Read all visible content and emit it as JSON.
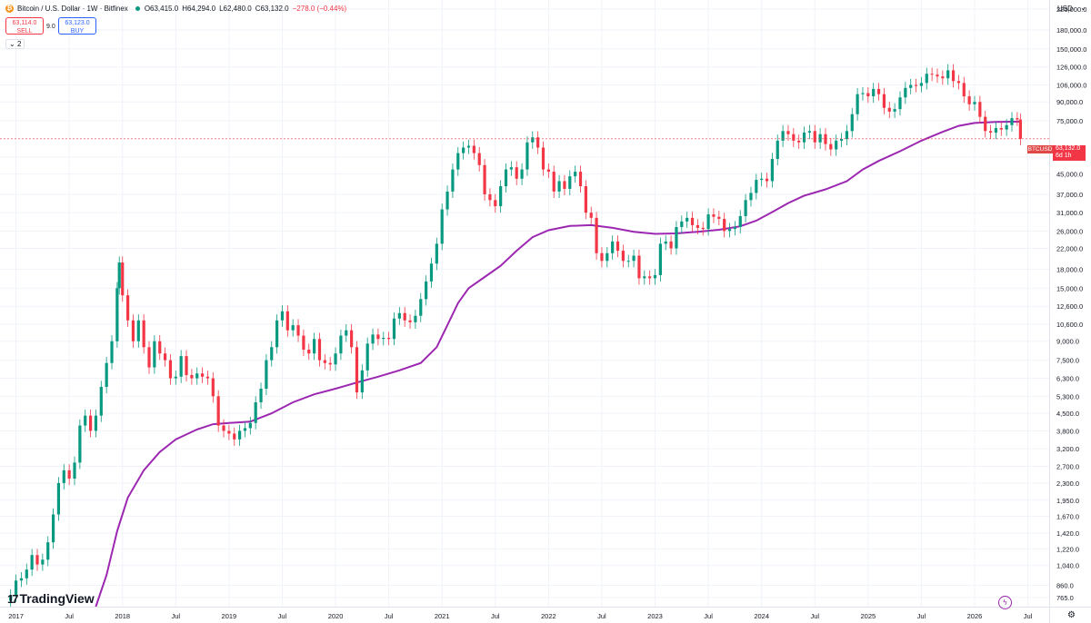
{
  "header": {
    "symbol_title": "Bitcoin / U.S. Dollar · 1W · Bitfinex",
    "open": "O63,415.0",
    "high": "H64,294.0",
    "low": "L62,480.0",
    "close": "C63,132.0",
    "change": "−278.0 (−0.44%)",
    "logo_glyph": "₿"
  },
  "trade": {
    "sell_price": "63,114.0",
    "sell_label": "SELL",
    "spread": "9.0",
    "buy_price": "63,123.0",
    "buy_label": "BUY"
  },
  "indicator_toggle": "2",
  "price_axis": {
    "currency": "USD",
    "caret": "⌄",
    "labels": [
      "220,000.0",
      "180,000.0",
      "150,000.0",
      "126,000.0",
      "106,000.0",
      "90,000.0",
      "75,000.0",
      "53,000.0",
      "45,000.0",
      "37,000.0",
      "31,000.0",
      "26,000.0",
      "22,000.0",
      "18,000.0",
      "15,000.0",
      "12,600.0",
      "10,600.0",
      "9,000.0",
      "7,500.0",
      "6,300.0",
      "5,300.0",
      "4,500.0",
      "3,800.0",
      "3,200.0",
      "2,700.0",
      "2,300.0",
      "1,950.0",
      "1,670.0",
      "1,420.0",
      "1,220.0",
      "1,040.0",
      "860.0",
      "765.0"
    ]
  },
  "time_axis": {
    "labels": [
      "2017",
      "Jul",
      "2018",
      "Jul",
      "2019",
      "Jul",
      "2020",
      "Jul",
      "2021",
      "Jul",
      "2022",
      "Jul",
      "2023",
      "Jul",
      "2024",
      "Jul",
      "2025",
      "Jul",
      "2026",
      "Jul"
    ]
  },
  "last_price_tag": {
    "symbol": "BTCUSD",
    "price": "63,132.0",
    "countdown": "6d 1h"
  },
  "branding": {
    "name": "TradingView",
    "mark": "17"
  },
  "icons": {
    "settings": "gear-icon",
    "alert": "spark-icon"
  },
  "colors": {
    "up": "#089981",
    "down": "#f23645",
    "ma": "#9c27b0",
    "grid": "#f0f3fa",
    "last_line": "#f23645"
  },
  "chart_data": {
    "type": "candlestick",
    "timeframe": "1W",
    "exchange": "Bitfinex",
    "y_scale": "log",
    "ylim": [
      700,
      240000
    ],
    "xlim": [
      2016.85,
      2026.7
    ],
    "grid": true,
    "last_close": 63132,
    "series": [
      {
        "name": "BTCUSD",
        "kind": "close_path",
        "points": [
          [
            2016.88,
            740
          ],
          [
            2016.95,
            780
          ],
          [
            2017.0,
            900
          ],
          [
            2017.05,
            920
          ],
          [
            2017.1,
            1000
          ],
          [
            2017.15,
            1150
          ],
          [
            2017.2,
            1050
          ],
          [
            2017.25,
            1100
          ],
          [
            2017.3,
            1300
          ],
          [
            2017.35,
            1700
          ],
          [
            2017.4,
            2300
          ],
          [
            2017.45,
            2600
          ],
          [
            2017.5,
            2400
          ],
          [
            2017.55,
            2800
          ],
          [
            2017.6,
            4000
          ],
          [
            2017.65,
            4400
          ],
          [
            2017.7,
            3800
          ],
          [
            2017.75,
            4400
          ],
          [
            2017.8,
            5800
          ],
          [
            2017.85,
            7300
          ],
          [
            2017.9,
            9000
          ],
          [
            2017.95,
            15000
          ],
          [
            2017.97,
            19200
          ],
          [
            2018.0,
            14000
          ],
          [
            2018.05,
            11000
          ],
          [
            2018.1,
            9000
          ],
          [
            2018.15,
            11000
          ],
          [
            2018.2,
            8500
          ],
          [
            2018.25,
            7000
          ],
          [
            2018.3,
            9000
          ],
          [
            2018.35,
            8000
          ],
          [
            2018.4,
            7500
          ],
          [
            2018.45,
            6300
          ],
          [
            2018.5,
            6400
          ],
          [
            2018.55,
            7800
          ],
          [
            2018.6,
            6500
          ],
          [
            2018.65,
            6300
          ],
          [
            2018.7,
            6600
          ],
          [
            2018.75,
            6400
          ],
          [
            2018.8,
            6300
          ],
          [
            2018.85,
            5300
          ],
          [
            2018.9,
            4000
          ],
          [
            2018.95,
            3800
          ],
          [
            2019.0,
            3700
          ],
          [
            2019.05,
            3500
          ],
          [
            2019.1,
            3800
          ],
          [
            2019.15,
            3900
          ],
          [
            2019.2,
            4100
          ],
          [
            2019.25,
            5000
          ],
          [
            2019.3,
            5700
          ],
          [
            2019.35,
            7500
          ],
          [
            2019.4,
            8500
          ],
          [
            2019.45,
            11000
          ],
          [
            2019.5,
            12000
          ],
          [
            2019.55,
            10000
          ],
          [
            2019.6,
            10500
          ],
          [
            2019.65,
            9500
          ],
          [
            2019.7,
            8300
          ],
          [
            2019.75,
            8000
          ],
          [
            2019.8,
            9200
          ],
          [
            2019.85,
            7500
          ],
          [
            2019.9,
            7300
          ],
          [
            2019.95,
            7200
          ],
          [
            2020.0,
            8000
          ],
          [
            2020.05,
            9500
          ],
          [
            2020.1,
            10000
          ],
          [
            2020.15,
            8500
          ],
          [
            2020.2,
            5500
          ],
          [
            2020.25,
            6800
          ],
          [
            2020.3,
            8800
          ],
          [
            2020.35,
            9600
          ],
          [
            2020.4,
            9200
          ],
          [
            2020.45,
            9300
          ],
          [
            2020.5,
            9200
          ],
          [
            2020.55,
            11200
          ],
          [
            2020.6,
            11800
          ],
          [
            2020.65,
            11000
          ],
          [
            2020.7,
            10800
          ],
          [
            2020.75,
            11500
          ],
          [
            2020.8,
            13500
          ],
          [
            2020.85,
            16000
          ],
          [
            2020.9,
            19000
          ],
          [
            2020.95,
            23000
          ],
          [
            2021.0,
            32000
          ],
          [
            2021.05,
            38000
          ],
          [
            2021.1,
            47000
          ],
          [
            2021.15,
            55000
          ],
          [
            2021.2,
            58000
          ],
          [
            2021.25,
            59000
          ],
          [
            2021.3,
            55000
          ],
          [
            2021.35,
            49000
          ],
          [
            2021.4,
            37000
          ],
          [
            2021.45,
            35000
          ],
          [
            2021.5,
            33000
          ],
          [
            2021.55,
            40000
          ],
          [
            2021.6,
            47000
          ],
          [
            2021.65,
            48000
          ],
          [
            2021.7,
            43000
          ],
          [
            2021.75,
            47000
          ],
          [
            2021.8,
            61000
          ],
          [
            2021.85,
            64000
          ],
          [
            2021.9,
            58000
          ],
          [
            2021.95,
            47000
          ],
          [
            2022.0,
            46000
          ],
          [
            2022.05,
            38000
          ],
          [
            2022.1,
            42000
          ],
          [
            2022.15,
            39000
          ],
          [
            2022.2,
            44000
          ],
          [
            2022.25,
            46000
          ],
          [
            2022.3,
            40000
          ],
          [
            2022.35,
            31000
          ],
          [
            2022.4,
            29500
          ],
          [
            2022.45,
            21000
          ],
          [
            2022.5,
            19500
          ],
          [
            2022.55,
            21000
          ],
          [
            2022.6,
            23500
          ],
          [
            2022.65,
            21500
          ],
          [
            2022.7,
            19500
          ],
          [
            2022.75,
            19500
          ],
          [
            2022.8,
            20500
          ],
          [
            2022.85,
            16500
          ],
          [
            2022.9,
            16800
          ],
          [
            2022.95,
            16500
          ],
          [
            2023.0,
            17000
          ],
          [
            2023.05,
            23000
          ],
          [
            2023.1,
            23500
          ],
          [
            2023.15,
            22000
          ],
          [
            2023.2,
            27000
          ],
          [
            2023.25,
            28500
          ],
          [
            2023.3,
            29500
          ],
          [
            2023.35,
            27500
          ],
          [
            2023.4,
            26800
          ],
          [
            2023.45,
            26500
          ],
          [
            2023.5,
            30500
          ],
          [
            2023.55,
            29800
          ],
          [
            2023.6,
            29200
          ],
          [
            2023.65,
            26000
          ],
          [
            2023.7,
            26500
          ],
          [
            2023.75,
            27000
          ],
          [
            2023.8,
            30000
          ],
          [
            2023.85,
            35000
          ],
          [
            2023.9,
            37500
          ],
          [
            2023.95,
            42500
          ],
          [
            2024.0,
            43000
          ],
          [
            2024.05,
            42000
          ],
          [
            2024.1,
            52000
          ],
          [
            2024.15,
            62000
          ],
          [
            2024.2,
            68000
          ],
          [
            2024.25,
            66000
          ],
          [
            2024.3,
            62000
          ],
          [
            2024.35,
            61000
          ],
          [
            2024.4,
            67000
          ],
          [
            2024.45,
            68000
          ],
          [
            2024.5,
            61000
          ],
          [
            2024.55,
            66000
          ],
          [
            2024.6,
            60000
          ],
          [
            2024.65,
            57000
          ],
          [
            2024.7,
            62000
          ],
          [
            2024.75,
            63000
          ],
          [
            2024.8,
            68000
          ],
          [
            2024.85,
            80000
          ],
          [
            2024.9,
            97000
          ],
          [
            2024.95,
            98000
          ],
          [
            2025.0,
            95000
          ],
          [
            2025.05,
            102000
          ],
          [
            2025.1,
            97000
          ],
          [
            2025.15,
            85000
          ],
          [
            2025.2,
            82000
          ],
          [
            2025.25,
            84000
          ],
          [
            2025.3,
            94000
          ],
          [
            2025.35,
            103000
          ],
          [
            2025.4,
            106000
          ],
          [
            2025.45,
            105000
          ],
          [
            2025.5,
            108000
          ],
          [
            2025.55,
            118000
          ],
          [
            2025.6,
            117000
          ],
          [
            2025.65,
            115000
          ],
          [
            2025.7,
            113000
          ],
          [
            2025.75,
            122000
          ],
          [
            2025.8,
            110000
          ],
          [
            2025.85,
            108000
          ],
          [
            2025.9,
            95000
          ],
          [
            2025.95,
            88000
          ],
          [
            2026.0,
            90000
          ],
          [
            2026.05,
            78000
          ],
          [
            2026.1,
            68000
          ],
          [
            2026.15,
            67000
          ],
          [
            2026.2,
            70000
          ],
          [
            2026.25,
            69000
          ],
          [
            2026.3,
            72000
          ],
          [
            2026.35,
            77000
          ],
          [
            2026.4,
            76000
          ],
          [
            2026.43,
            63132
          ]
        ]
      },
      {
        "name": "MA",
        "kind": "line",
        "points": [
          [
            2017.75,
            700
          ],
          [
            2017.85,
            950
          ],
          [
            2017.95,
            1450
          ],
          [
            2018.05,
            2000
          ],
          [
            2018.2,
            2600
          ],
          [
            2018.35,
            3100
          ],
          [
            2018.5,
            3500
          ],
          [
            2018.7,
            3850
          ],
          [
            2018.85,
            4050
          ],
          [
            2019.0,
            4100
          ],
          [
            2019.2,
            4150
          ],
          [
            2019.4,
            4500
          ],
          [
            2019.6,
            5000
          ],
          [
            2019.8,
            5400
          ],
          [
            2020.0,
            5700
          ],
          [
            2020.2,
            6050
          ],
          [
            2020.4,
            6400
          ],
          [
            2020.6,
            6800
          ],
          [
            2020.8,
            7300
          ],
          [
            2020.95,
            8500
          ],
          [
            2021.05,
            10500
          ],
          [
            2021.15,
            13000
          ],
          [
            2021.25,
            15000
          ],
          [
            2021.4,
            16700
          ],
          [
            2021.55,
            18600
          ],
          [
            2021.7,
            21500
          ],
          [
            2021.85,
            24500
          ],
          [
            2022.0,
            26200
          ],
          [
            2022.2,
            27300
          ],
          [
            2022.4,
            27500
          ],
          [
            2022.6,
            26800
          ],
          [
            2022.8,
            25800
          ],
          [
            2023.0,
            25300
          ],
          [
            2023.2,
            25400
          ],
          [
            2023.4,
            25800
          ],
          [
            2023.6,
            26300
          ],
          [
            2023.8,
            27200
          ],
          [
            2023.95,
            28700
          ],
          [
            2024.1,
            31200
          ],
          [
            2024.25,
            34000
          ],
          [
            2024.4,
            36500
          ],
          [
            2024.6,
            38800
          ],
          [
            2024.8,
            42000
          ],
          [
            2024.95,
            47000
          ],
          [
            2025.1,
            51000
          ],
          [
            2025.3,
            56000
          ],
          [
            2025.5,
            62000
          ],
          [
            2025.7,
            67500
          ],
          [
            2025.85,
            71500
          ],
          [
            2026.0,
            73500
          ],
          [
            2026.2,
            74200
          ],
          [
            2026.43,
            74500
          ]
        ]
      }
    ]
  }
}
